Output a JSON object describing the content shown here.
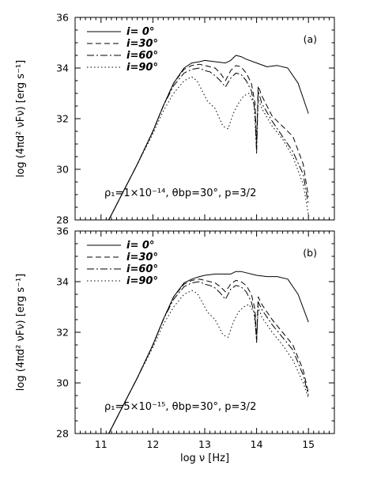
{
  "figure": {
    "xlabel": "log ν [Hz]",
    "ylabel": "log (4πd² νFν) [erg s⁻¹]"
  },
  "chart_data": [
    {
      "type": "line",
      "panel_label": "(a)",
      "annotation": "ρ₁=1×10⁻¹⁴, θbp=30°, p=3/2",
      "xlabel": "log ν [Hz]",
      "ylabel": "log (4πd² νFν) [erg s⁻¹]",
      "xlim": [
        10.5,
        15.5
      ],
      "ylim": [
        28,
        36
      ],
      "xticks": [
        11,
        12,
        13,
        14,
        15
      ],
      "yticks": [
        28,
        30,
        32,
        34,
        36
      ],
      "grid": false,
      "legend_position": "top-left",
      "series": [
        {
          "name": "i= 0°",
          "style": "solid",
          "x": [
            11.15,
            11.4,
            11.7,
            12.0,
            12.2,
            12.4,
            12.6,
            12.75,
            12.9,
            13.0,
            13.2,
            13.4,
            13.5,
            13.6,
            13.7,
            13.8,
            14.0,
            14.2,
            14.4,
            14.6,
            14.8,
            15.0
          ],
          "y": [
            28.0,
            29.0,
            30.2,
            31.5,
            32.5,
            33.4,
            34.0,
            34.2,
            34.25,
            34.3,
            34.25,
            34.2,
            34.3,
            34.5,
            34.45,
            34.35,
            34.2,
            34.05,
            34.1,
            34.0,
            33.4,
            32.2
          ]
        },
        {
          "name": "i=30°",
          "style": "dashed",
          "x": [
            11.15,
            11.4,
            11.7,
            12.0,
            12.2,
            12.4,
            12.6,
            12.75,
            12.9,
            13.0,
            13.1,
            13.2,
            13.3,
            13.4,
            13.5,
            13.6,
            13.7,
            13.8,
            13.9,
            13.97,
            14.0,
            14.03,
            14.1,
            14.3,
            14.5,
            14.7,
            14.9,
            15.0
          ],
          "y": [
            28.0,
            29.0,
            30.2,
            31.5,
            32.5,
            33.4,
            33.95,
            34.1,
            34.15,
            34.1,
            34.05,
            34.0,
            33.8,
            33.5,
            33.9,
            34.1,
            34.05,
            33.8,
            33.4,
            32.6,
            31.0,
            33.3,
            32.9,
            32.1,
            31.7,
            31.3,
            30.2,
            28.9
          ]
        },
        {
          "name": "i=60°",
          "style": "dashdot",
          "x": [
            11.15,
            11.4,
            11.7,
            12.0,
            12.2,
            12.4,
            12.6,
            12.75,
            12.9,
            13.0,
            13.1,
            13.2,
            13.3,
            13.4,
            13.5,
            13.6,
            13.7,
            13.8,
            13.9,
            13.97,
            14.0,
            14.03,
            14.1,
            14.3,
            14.5,
            14.7,
            14.9,
            15.0
          ],
          "y": [
            28.0,
            29.0,
            30.2,
            31.5,
            32.5,
            33.3,
            33.8,
            33.95,
            34.0,
            33.9,
            33.85,
            33.7,
            33.5,
            33.25,
            33.6,
            33.8,
            33.75,
            33.5,
            33.1,
            32.3,
            30.6,
            33.1,
            32.6,
            31.9,
            31.3,
            30.7,
            29.8,
            28.6
          ]
        },
        {
          "name": "i=90°",
          "style": "dotted",
          "x": [
            11.15,
            11.4,
            11.7,
            12.0,
            12.2,
            12.4,
            12.6,
            12.75,
            12.85,
            12.95,
            13.05,
            13.2,
            13.35,
            13.45,
            13.55,
            13.65,
            13.75,
            13.85,
            13.95,
            14.0,
            14.03,
            14.1,
            14.3,
            14.5,
            14.7,
            14.9,
            15.0
          ],
          "y": [
            28.0,
            29.0,
            30.2,
            31.4,
            32.3,
            33.0,
            33.5,
            33.65,
            33.5,
            33.1,
            32.7,
            32.4,
            31.7,
            31.6,
            32.2,
            32.6,
            32.9,
            33.0,
            32.6,
            30.8,
            32.8,
            32.4,
            31.7,
            31.2,
            30.5,
            29.4,
            28.2
          ]
        }
      ]
    },
    {
      "type": "line",
      "panel_label": "(b)",
      "annotation": "ρ₁=5×10⁻¹⁵, θbp=30°, p=3/2",
      "xlabel": "log ν [Hz]",
      "ylabel": "log (4πd² νFν) [erg s⁻¹]",
      "xlim": [
        10.5,
        15.5
      ],
      "ylim": [
        28,
        36
      ],
      "xticks": [
        11,
        12,
        13,
        14,
        15
      ],
      "yticks": [
        28,
        30,
        32,
        34,
        36
      ],
      "grid": false,
      "legend_position": "top-left",
      "series": [
        {
          "name": "i= 0°",
          "style": "solid",
          "x": [
            11.15,
            11.4,
            11.7,
            12.0,
            12.2,
            12.4,
            12.6,
            12.75,
            12.9,
            13.0,
            13.2,
            13.4,
            13.5,
            13.6,
            13.7,
            13.8,
            14.0,
            14.2,
            14.4,
            14.6,
            14.8,
            15.0
          ],
          "y": [
            28.0,
            29.0,
            30.2,
            31.5,
            32.5,
            33.4,
            33.95,
            34.1,
            34.2,
            34.25,
            34.3,
            34.3,
            34.3,
            34.4,
            34.4,
            34.35,
            34.25,
            34.2,
            34.2,
            34.1,
            33.5,
            32.4
          ]
        },
        {
          "name": "i=30°",
          "style": "dashed",
          "x": [
            11.15,
            11.4,
            11.7,
            12.0,
            12.2,
            12.4,
            12.6,
            12.75,
            12.9,
            13.0,
            13.1,
            13.2,
            13.3,
            13.4,
            13.5,
            13.6,
            13.7,
            13.8,
            13.9,
            13.97,
            14.0,
            14.03,
            14.1,
            14.3,
            14.5,
            14.7,
            14.9,
            15.0
          ],
          "y": [
            28.0,
            29.0,
            30.2,
            31.5,
            32.5,
            33.4,
            33.9,
            34.05,
            34.1,
            34.05,
            34.0,
            33.95,
            33.8,
            33.6,
            33.9,
            34.05,
            34.0,
            33.85,
            33.5,
            32.9,
            31.7,
            33.4,
            33.1,
            32.5,
            32.0,
            31.5,
            30.5,
            29.6
          ]
        },
        {
          "name": "i=60°",
          "style": "dashdot",
          "x": [
            11.15,
            11.4,
            11.7,
            12.0,
            12.2,
            12.4,
            12.6,
            12.75,
            12.9,
            13.0,
            13.1,
            13.2,
            13.3,
            13.4,
            13.5,
            13.6,
            13.7,
            13.8,
            13.9,
            13.97,
            14.0,
            14.03,
            14.1,
            14.3,
            14.5,
            14.7,
            14.9,
            15.0
          ],
          "y": [
            28.0,
            29.0,
            30.2,
            31.5,
            32.5,
            33.3,
            33.8,
            33.95,
            34.0,
            33.9,
            33.85,
            33.75,
            33.55,
            33.3,
            33.7,
            33.85,
            33.8,
            33.6,
            33.2,
            32.6,
            31.6,
            33.2,
            32.9,
            32.3,
            31.8,
            31.3,
            30.3,
            29.5
          ]
        },
        {
          "name": "i=90°",
          "style": "dotted",
          "x": [
            11.15,
            11.4,
            11.7,
            12.0,
            12.2,
            12.4,
            12.6,
            12.75,
            12.85,
            12.95,
            13.05,
            13.2,
            13.35,
            13.45,
            13.55,
            13.65,
            13.75,
            13.85,
            13.95,
            14.0,
            14.03,
            14.1,
            14.3,
            14.5,
            14.7,
            14.9,
            15.0
          ],
          "y": [
            28.0,
            29.0,
            30.2,
            31.4,
            32.3,
            33.0,
            33.5,
            33.65,
            33.55,
            33.2,
            32.8,
            32.5,
            31.9,
            31.8,
            32.4,
            32.8,
            33.0,
            33.1,
            32.8,
            31.7,
            33.0,
            32.6,
            32.0,
            31.5,
            30.9,
            30.0,
            29.4
          ]
        }
      ]
    }
  ]
}
